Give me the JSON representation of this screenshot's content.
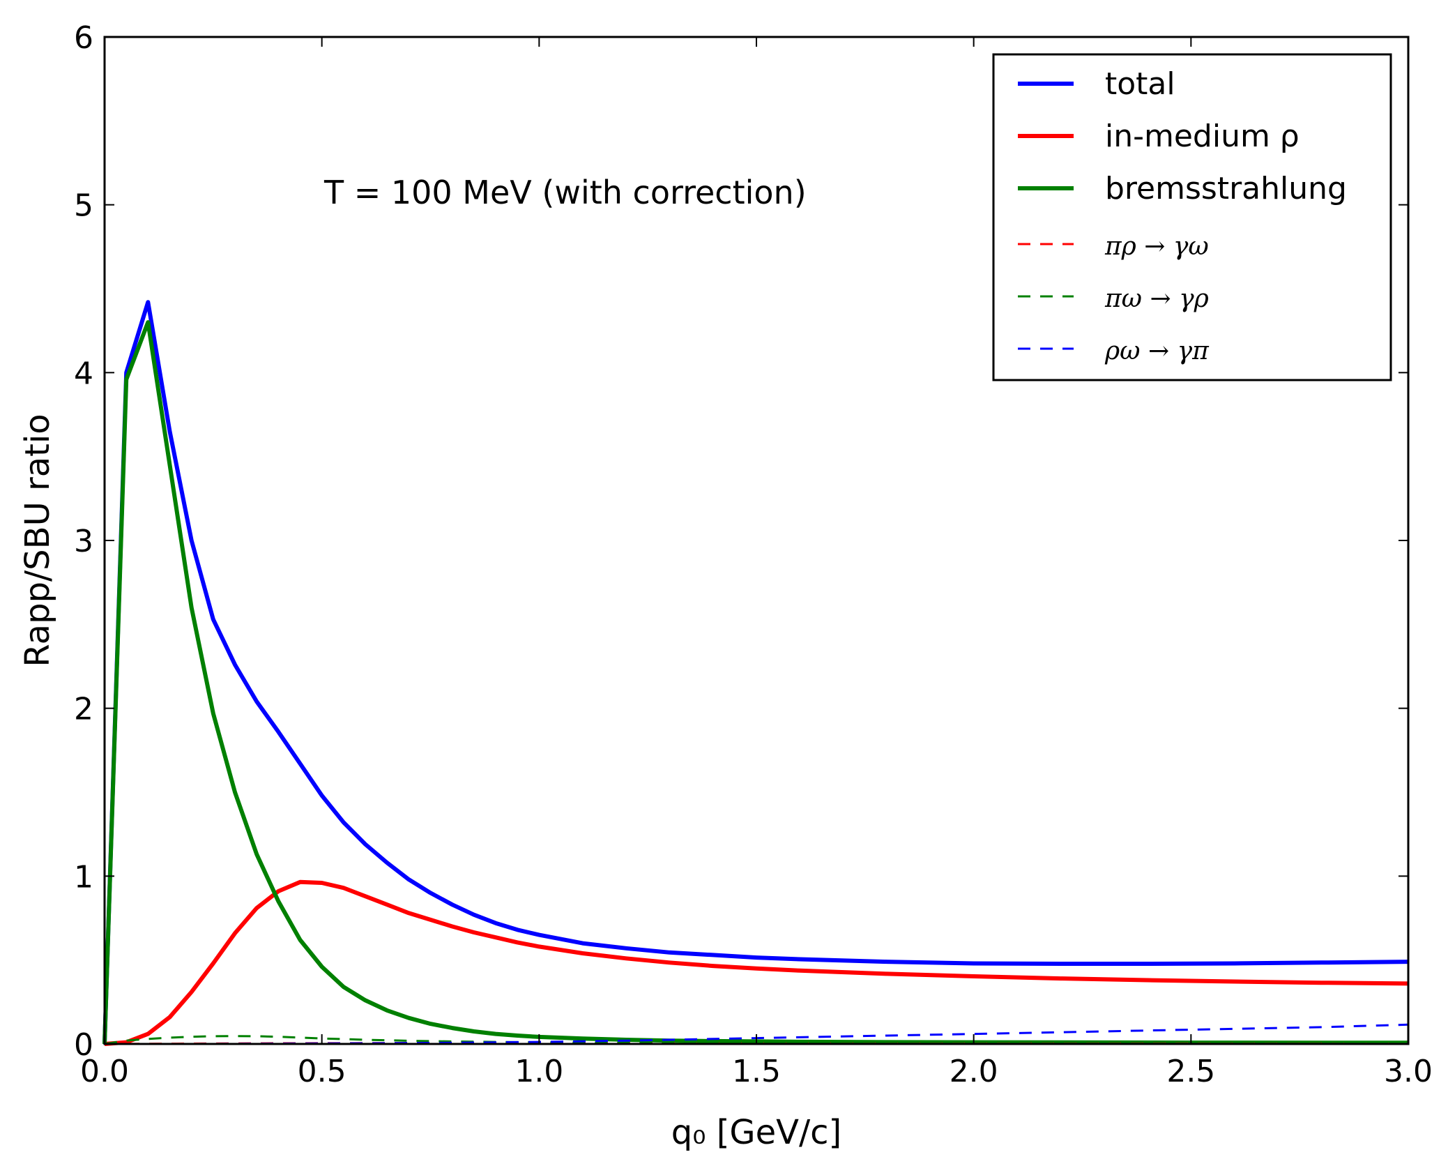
{
  "chart_data": {
    "type": "line",
    "title": "",
    "annotation": "T = 100 MeV (with correction)",
    "xlabel": "q₀ [GeV/c]",
    "ylabel": "Rapp/SBU ratio",
    "xlim": [
      0.0,
      3.0
    ],
    "ylim": [
      0,
      6
    ],
    "x_ticks": [
      "0.0",
      "0.5",
      "1.0",
      "1.5",
      "2.0",
      "2.5",
      "3.0"
    ],
    "y_ticks": [
      "0",
      "1",
      "2",
      "3",
      "4",
      "5",
      "6"
    ],
    "grid": false,
    "legend_position": "top-right",
    "series": [
      {
        "name": "total",
        "color": "#0000ff",
        "style": "solid",
        "x": [
          0.0,
          0.05,
          0.1,
          0.15,
          0.2,
          0.25,
          0.3,
          0.35,
          0.4,
          0.45,
          0.5,
          0.55,
          0.6,
          0.65,
          0.7,
          0.75,
          0.8,
          0.85,
          0.9,
          0.95,
          1.0,
          1.1,
          1.2,
          1.3,
          1.4,
          1.5,
          1.6,
          1.8,
          2.0,
          2.2,
          2.4,
          2.6,
          2.8,
          3.0
        ],
        "y": [
          0.0,
          4.0,
          4.42,
          3.65,
          3.0,
          2.53,
          2.26,
          2.04,
          1.86,
          1.67,
          1.48,
          1.32,
          1.19,
          1.08,
          0.98,
          0.9,
          0.83,
          0.77,
          0.72,
          0.68,
          0.65,
          0.6,
          0.57,
          0.545,
          0.53,
          0.515,
          0.505,
          0.49,
          0.48,
          0.478,
          0.478,
          0.48,
          0.485,
          0.49
        ]
      },
      {
        "name": "in-medium ρ",
        "color": "#ff0000",
        "style": "solid",
        "x": [
          0.0,
          0.05,
          0.1,
          0.15,
          0.2,
          0.25,
          0.3,
          0.35,
          0.4,
          0.45,
          0.5,
          0.55,
          0.6,
          0.65,
          0.7,
          0.75,
          0.8,
          0.85,
          0.9,
          0.95,
          1.0,
          1.1,
          1.2,
          1.3,
          1.4,
          1.5,
          1.6,
          1.8,
          2.0,
          2.2,
          2.4,
          2.6,
          2.8,
          3.0
        ],
        "y": [
          0.0,
          0.01,
          0.06,
          0.16,
          0.31,
          0.48,
          0.66,
          0.81,
          0.91,
          0.965,
          0.96,
          0.93,
          0.88,
          0.83,
          0.78,
          0.74,
          0.7,
          0.665,
          0.635,
          0.605,
          0.58,
          0.54,
          0.51,
          0.485,
          0.465,
          0.45,
          0.437,
          0.418,
          0.403,
          0.39,
          0.38,
          0.372,
          0.365,
          0.36
        ]
      },
      {
        "name": "bremsstrahlung",
        "color": "#008000",
        "style": "solid",
        "x": [
          0.0,
          0.05,
          0.1,
          0.15,
          0.2,
          0.25,
          0.3,
          0.35,
          0.4,
          0.45,
          0.5,
          0.55,
          0.6,
          0.65,
          0.7,
          0.75,
          0.8,
          0.85,
          0.9,
          0.95,
          1.0,
          1.1,
          1.2,
          1.3,
          1.4,
          1.5,
          1.6,
          1.8,
          2.0,
          2.5,
          3.0
        ],
        "y": [
          0.0,
          3.96,
          4.3,
          3.45,
          2.6,
          1.97,
          1.5,
          1.13,
          0.85,
          0.62,
          0.46,
          0.34,
          0.26,
          0.2,
          0.155,
          0.12,
          0.095,
          0.075,
          0.06,
          0.05,
          0.042,
          0.032,
          0.025,
          0.02,
          0.017,
          0.015,
          0.013,
          0.011,
          0.01,
          0.008,
          0.007
        ]
      },
      {
        "name": "πρ → γω",
        "color": "#ff0000",
        "style": "dashed",
        "x": [
          0.0,
          0.2,
          0.4,
          0.6,
          0.8,
          1.0,
          1.5,
          2.0,
          2.5,
          3.0
        ],
        "y": [
          0.0,
          0.002,
          0.004,
          0.005,
          0.005,
          0.005,
          0.004,
          0.003,
          0.003,
          0.002
        ]
      },
      {
        "name": "πω → γρ",
        "color": "#008000",
        "style": "dashed",
        "x": [
          0.0,
          0.05,
          0.1,
          0.15,
          0.2,
          0.25,
          0.3,
          0.35,
          0.4,
          0.45,
          0.5,
          0.6,
          0.7,
          0.8,
          0.9,
          1.0,
          1.2,
          1.4,
          1.6,
          2.0,
          2.5,
          3.0
        ],
        "y": [
          0.0,
          0.02,
          0.03,
          0.038,
          0.043,
          0.046,
          0.047,
          0.046,
          0.043,
          0.038,
          0.033,
          0.025,
          0.019,
          0.015,
          0.012,
          0.01,
          0.007,
          0.005,
          0.004,
          0.003,
          0.002,
          0.002
        ]
      },
      {
        "name": "ρω → γπ",
        "color": "#0000ff",
        "style": "dashed",
        "x": [
          0.0,
          0.2,
          0.4,
          0.6,
          0.8,
          1.0,
          1.2,
          1.4,
          1.6,
          1.8,
          2.0,
          2.2,
          2.4,
          2.6,
          2.8,
          3.0
        ],
        "y": [
          0.0,
          0.0,
          0.002,
          0.004,
          0.007,
          0.012,
          0.02,
          0.03,
          0.04,
          0.05,
          0.06,
          0.07,
          0.08,
          0.09,
          0.1,
          0.115
        ]
      }
    ]
  }
}
